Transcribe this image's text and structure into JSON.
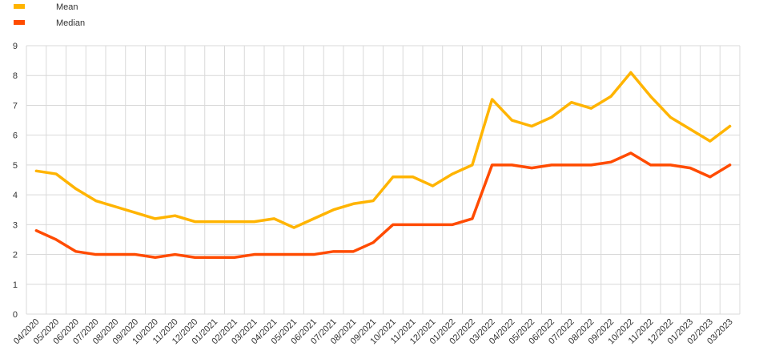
{
  "chart_data": {
    "type": "line",
    "title": "",
    "xlabel": "",
    "ylabel": "",
    "ylim": [
      0,
      9
    ],
    "yticks": [
      "0",
      "1",
      "2",
      "3",
      "4",
      "5",
      "6",
      "7",
      "8",
      "9"
    ],
    "grid": true,
    "legend_position": "top-left",
    "categories": [
      "04/2020",
      "05/2020",
      "06/2020",
      "07/2020",
      "08/2020",
      "09/2020",
      "10/2020",
      "11/2020",
      "12/2020",
      "01/2021",
      "02/2021",
      "03/2021",
      "04/2021",
      "05/2021",
      "06/2021",
      "07/2021",
      "08/2021",
      "09/2021",
      "10/2021",
      "11/2021",
      "12/2021",
      "01/2022",
      "02/2022",
      "03/2022",
      "04/2022",
      "05/2022",
      "06/2022",
      "07/2022",
      "08/2022",
      "09/2022",
      "10/2022",
      "11/2022",
      "12/2022",
      "01/2023",
      "02/2023",
      "03/2023"
    ],
    "series": [
      {
        "name": "Mean",
        "color": "#ffb400",
        "values": [
          4.8,
          4.7,
          4.2,
          3.8,
          3.6,
          3.4,
          3.2,
          3.3,
          3.1,
          3.1,
          3.1,
          3.1,
          3.2,
          2.9,
          3.2,
          3.5,
          3.7,
          3.8,
          4.6,
          4.6,
          4.3,
          4.7,
          5.0,
          7.2,
          6.5,
          6.3,
          6.6,
          7.1,
          6.9,
          7.3,
          8.1,
          7.3,
          6.6,
          6.2,
          5.8,
          6.3
        ]
      },
      {
        "name": "Median",
        "color": "#ff4b00",
        "values": [
          2.8,
          2.5,
          2.1,
          2.0,
          2.0,
          2.0,
          1.9,
          2.0,
          1.9,
          1.9,
          1.9,
          2.0,
          2.0,
          2.0,
          2.0,
          2.1,
          2.1,
          2.4,
          3.0,
          3.0,
          3.0,
          3.0,
          3.2,
          5.0,
          5.0,
          4.9,
          5.0,
          5.0,
          5.0,
          5.1,
          5.4,
          5.0,
          5.0,
          4.9,
          4.6,
          5.0
        ]
      }
    ]
  }
}
